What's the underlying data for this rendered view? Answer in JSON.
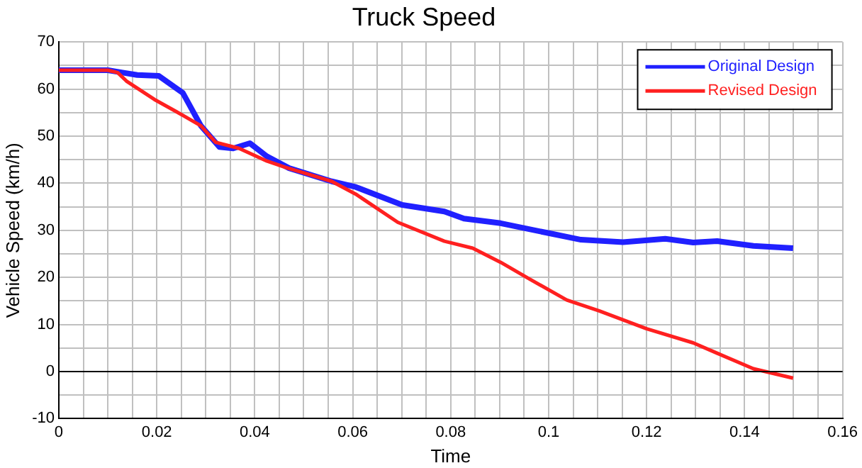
{
  "chart_data": {
    "type": "line",
    "title": "Truck Speed",
    "xlabel": "Time",
    "ylabel": "Vehicle Speed (km/h)",
    "xlim": [
      0,
      0.16
    ],
    "ylim": [
      -10,
      70
    ],
    "xticks": [
      0,
      {
        "value": 0.005,
        "label": null
      },
      0.02,
      {
        "value": 0.01,
        "label": null
      },
      {
        "value": 0.015,
        "label": null
      },
      {
        "value": 0.025,
        "label": null
      },
      {
        "value": 0.03,
        "label": null
      },
      {
        "value": 0.035,
        "label": null
      },
      0.04,
      {
        "value": 0.045,
        "label": null
      },
      {
        "value": 0.05,
        "label": null
      },
      {
        "value": 0.055,
        "label": null
      },
      0.06,
      {
        "value": 0.065,
        "label": null
      },
      {
        "value": 0.07,
        "label": null
      },
      {
        "value": 0.075,
        "label": null
      },
      0.08,
      {
        "value": 0.085,
        "label": null
      },
      {
        "value": 0.09,
        "label": null
      },
      {
        "value": 0.095,
        "label": null
      },
      0.1,
      {
        "value": 0.105,
        "label": null
      },
      {
        "value": 0.11,
        "label": null
      },
      {
        "value": 0.115,
        "label": null
      },
      0.12,
      {
        "value": 0.125,
        "label": null
      },
      {
        "value": 0.13,
        "label": null
      },
      {
        "value": 0.135,
        "label": null
      },
      0.14,
      {
        "value": 0.145,
        "label": null
      },
      {
        "value": 0.15,
        "label": null
      },
      {
        "value": 0.155,
        "label": null
      },
      0.16
    ],
    "yticks": [
      -10,
      {
        "value": -5,
        "label": null
      },
      0,
      {
        "value": 5,
        "label": null
      },
      10,
      {
        "value": 15,
        "label": null
      },
      20,
      {
        "value": 25,
        "label": null
      },
      30,
      {
        "value": 35,
        "label": null
      },
      40,
      {
        "value": 45,
        "label": null
      },
      50,
      {
        "value": 55,
        "label": null
      },
      60,
      {
        "value": 65,
        "label": null
      },
      70
    ],
    "grid": true,
    "legend": "top right",
    "line_style": "solid",
    "marker": "none",
    "ref_lines": [
      {
        "axis": "y",
        "value": 0,
        "color": "#000000"
      }
    ],
    "series": [
      {
        "name": "Original Design",
        "color": "#2020ff",
        "x": [
          0,
          0.005,
          0.01,
          0.013,
          0.016,
          0.0204,
          0.0253,
          0.029,
          0.0328,
          0.0356,
          0.039,
          0.0425,
          0.047,
          0.0557,
          0.0606,
          0.0701,
          0.0787,
          0.0827,
          0.0902,
          0.1,
          0.1066,
          0.1152,
          0.1238,
          0.1295,
          0.1344,
          0.1418,
          0.1499
        ],
        "values": [
          64,
          64,
          64,
          63.5,
          63,
          62.8,
          59.2,
          52.2,
          47.7,
          47.4,
          48.5,
          45.7,
          43.2,
          40.4,
          39.2,
          35.4,
          34,
          32.5,
          31.5,
          29.4,
          28,
          27.5,
          28.2,
          27.4,
          27.7,
          26.7,
          26.2
        ]
      },
      {
        "name": "Revised Design",
        "color": "#ff2020",
        "x": [
          0,
          0.005,
          0.01,
          0.012,
          0.0138,
          0.0195,
          0.024,
          0.029,
          0.032,
          0.0368,
          0.0425,
          0.0462,
          0.0557,
          0.0606,
          0.0692,
          0.0787,
          0.0845,
          0.0902,
          0.096,
          0.1037,
          0.1103,
          0.12,
          0.1295,
          0.1344,
          0.1418,
          0.1499
        ],
        "values": [
          64,
          64,
          64,
          63.5,
          61.7,
          57.8,
          55.2,
          52.2,
          48.7,
          47.4,
          44.7,
          43.4,
          40.4,
          37.7,
          31.7,
          27.7,
          26.2,
          23.2,
          19.7,
          15.2,
          12.9,
          9.1,
          6.1,
          3.9,
          0.6,
          -1.4
        ]
      }
    ]
  }
}
